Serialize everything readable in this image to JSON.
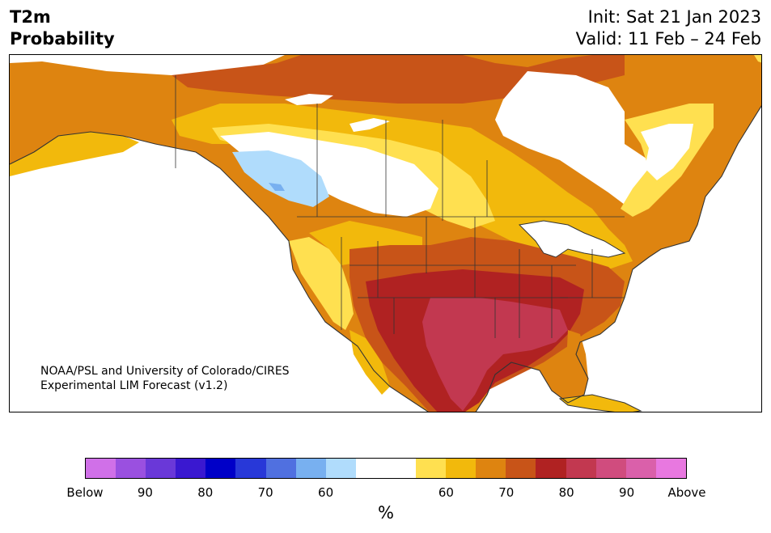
{
  "header": {
    "variable": "T2m",
    "product": "Probability",
    "init": "Init: Sat 21 Jan 2023",
    "valid": "Valid: 11 Feb – 24 Feb"
  },
  "credit": {
    "line1": "NOAA/PSL and University of Colorado/CIRES",
    "line2": "Experimental LIM Forecast (v1.2)"
  },
  "colorbar": {
    "colors": [
      "#d070e8",
      "#9a50e0",
      "#6a38d8",
      "#3a18d0",
      "#0000c8",
      "#2838d8",
      "#5070e0",
      "#78b0f0",
      "#b0dcfc",
      "#ffffff",
      "#ffffff",
      "#ffe050",
      "#f2b90c",
      "#de8410",
      "#c85418",
      "#b02222",
      "#c23850",
      "#d04c7e",
      "#da60aa",
      "#e878e0"
    ],
    "tick_labels": [
      "Below",
      "90",
      "80",
      "70",
      "60",
      "60",
      "70",
      "80",
      "90",
      "Above"
    ],
    "unit": "%"
  },
  "map_legend_colors": {
    "near_normal": "#ffffff",
    "above_60": "#ffe050",
    "above_65": "#f2b90c",
    "above_70": "#de8410",
    "above_75": "#c85418",
    "above_80": "#b02222",
    "above_85": "#c23850",
    "below_60": "#b0dcfc",
    "below_65": "#78b0f0"
  }
}
